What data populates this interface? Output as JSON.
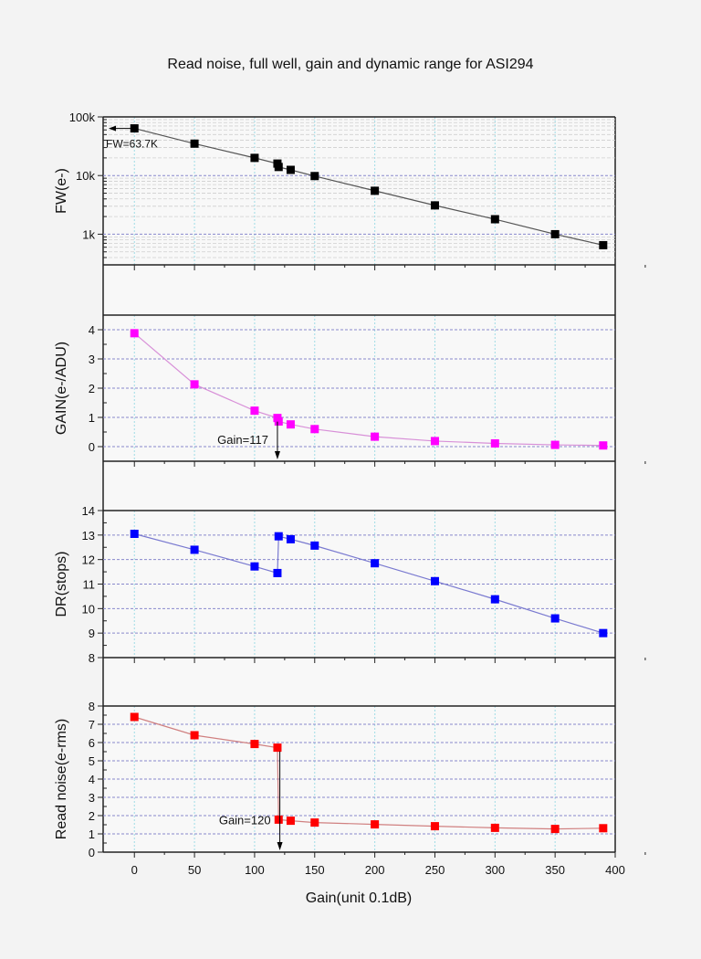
{
  "chart_data": {
    "type": "line",
    "title": "Read noise, full well, gain and dynamic range for ASI294",
    "xlabel": "Gain(unit 0.1dB)",
    "xlim": [
      -26,
      400
    ],
    "xticks": [
      0,
      50,
      100,
      150,
      200,
      250,
      300,
      350,
      400
    ],
    "x": [
      0,
      50,
      100,
      119,
      120,
      130,
      150,
      200,
      250,
      300,
      350,
      390
    ],
    "panels": [
      {
        "id": "fw",
        "ylabel": "FW(e-)",
        "scale": "log",
        "ylim": [
          300,
          100000
        ],
        "yticks": [
          1000,
          10000,
          100000
        ],
        "yticklabels": [
          "1k",
          "10k",
          "100k"
        ],
        "color": "#000000",
        "line_color": "#555555",
        "values": [
          63700,
          35000,
          20000,
          16000,
          14000,
          12500,
          9800,
          5500,
          3100,
          1800,
          1000,
          650
        ],
        "annotation": {
          "text": "FW=63.7K",
          "x": 0,
          "arrow": "left"
        }
      },
      {
        "id": "gain",
        "ylabel": "GAIN(e-/ADU)",
        "scale": "linear",
        "ylim": [
          -0.5,
          4.5
        ],
        "yticks": [
          0,
          1,
          2,
          3,
          4
        ],
        "yticklabels": [
          "0",
          "1",
          "2",
          "3",
          "4"
        ],
        "color": "#ff00ff",
        "line_color": "#d890d8",
        "values": [
          3.88,
          2.13,
          1.23,
          0.98,
          0.86,
          0.76,
          0.6,
          0.34,
          0.19,
          0.11,
          0.06,
          0.04
        ],
        "annotation": {
          "text": "Gain=117",
          "x": 119,
          "arrow": "down"
        }
      },
      {
        "id": "dr",
        "ylabel": "DR(stops)",
        "scale": "linear",
        "ylim": [
          8,
          14
        ],
        "yticks": [
          8,
          9,
          10,
          11,
          12,
          13,
          14
        ],
        "yticklabels": [
          "8",
          "9",
          "10",
          "11",
          "12",
          "13",
          "14"
        ],
        "color": "#0000ff",
        "line_color": "#7a7ad0",
        "values": [
          13.05,
          12.4,
          11.72,
          11.45,
          12.95,
          12.83,
          12.57,
          11.85,
          11.12,
          10.38,
          9.6,
          9.0
        ]
      },
      {
        "id": "rn",
        "ylabel": "Read noise(e-rms)",
        "scale": "linear",
        "ylim": [
          0,
          8
        ],
        "yticks": [
          0,
          1,
          2,
          3,
          4,
          5,
          6,
          7,
          8
        ],
        "yticklabels": [
          "0",
          "1",
          "2",
          "3",
          "4",
          "5",
          "6",
          "7",
          "8"
        ],
        "color": "#ff0000",
        "line_color": "#d08080",
        "values": [
          7.4,
          6.4,
          5.92,
          5.72,
          1.78,
          1.72,
          1.62,
          1.52,
          1.42,
          1.33,
          1.27,
          1.31
        ],
        "annotation": {
          "text": "Gain=120",
          "x": 121,
          "arrow": "down"
        }
      }
    ]
  }
}
